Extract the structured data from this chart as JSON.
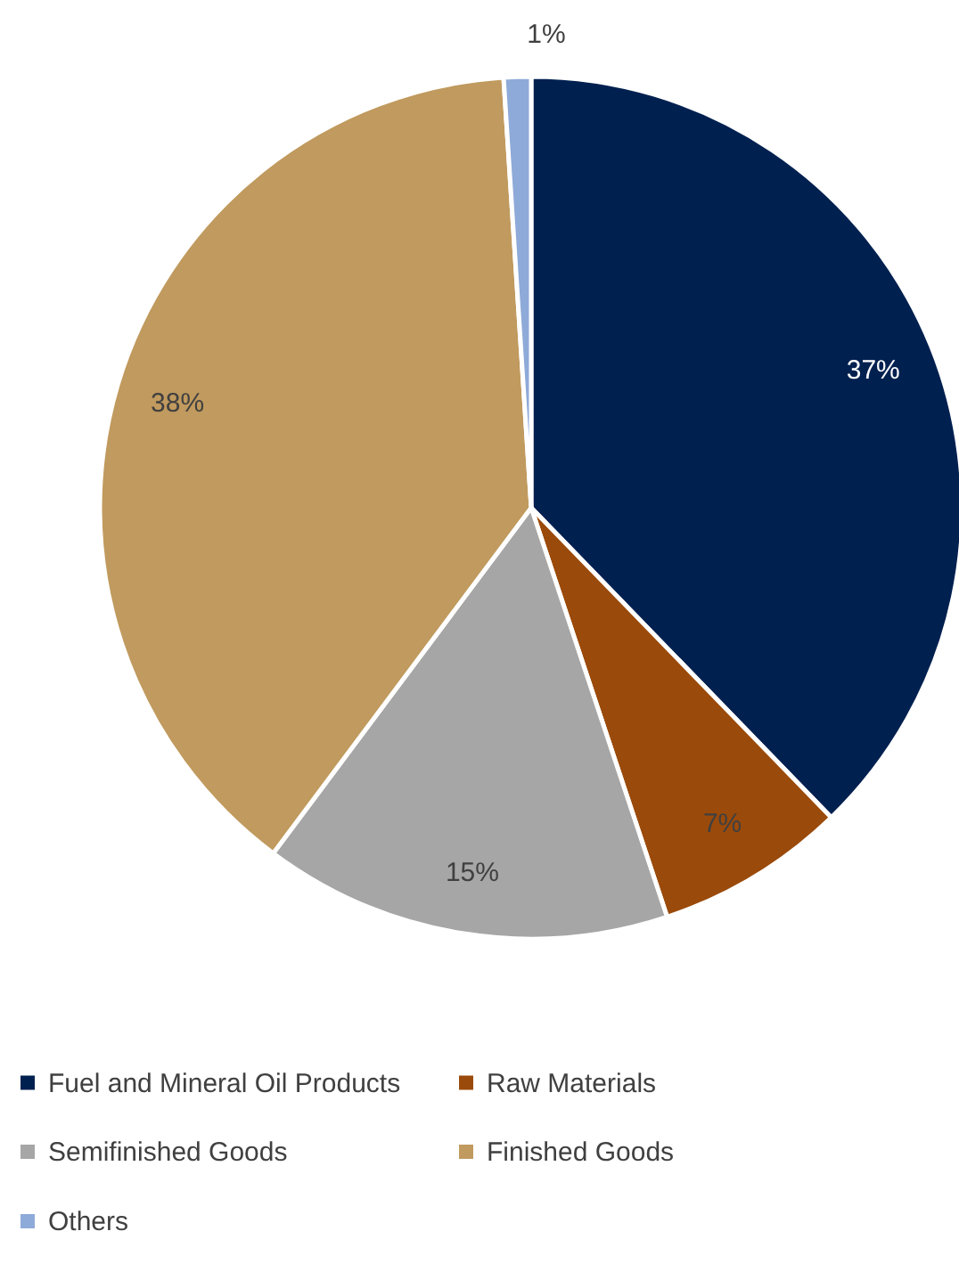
{
  "chart_data": {
    "type": "pie",
    "categories": [
      "Fuel and Mineral Oil Products",
      "Raw Materials",
      "Semifinished Goods",
      "Finished Goods",
      "Others"
    ],
    "values": [
      37,
      7,
      15,
      38,
      1
    ],
    "colors": [
      "#002050",
      "#9a4a0a",
      "#a6a6a6",
      "#c09a5e",
      "#8eaad8"
    ],
    "value_labels": [
      "37%",
      "7%",
      "15%",
      "38%",
      "1%"
    ],
    "legend": "bottom"
  }
}
